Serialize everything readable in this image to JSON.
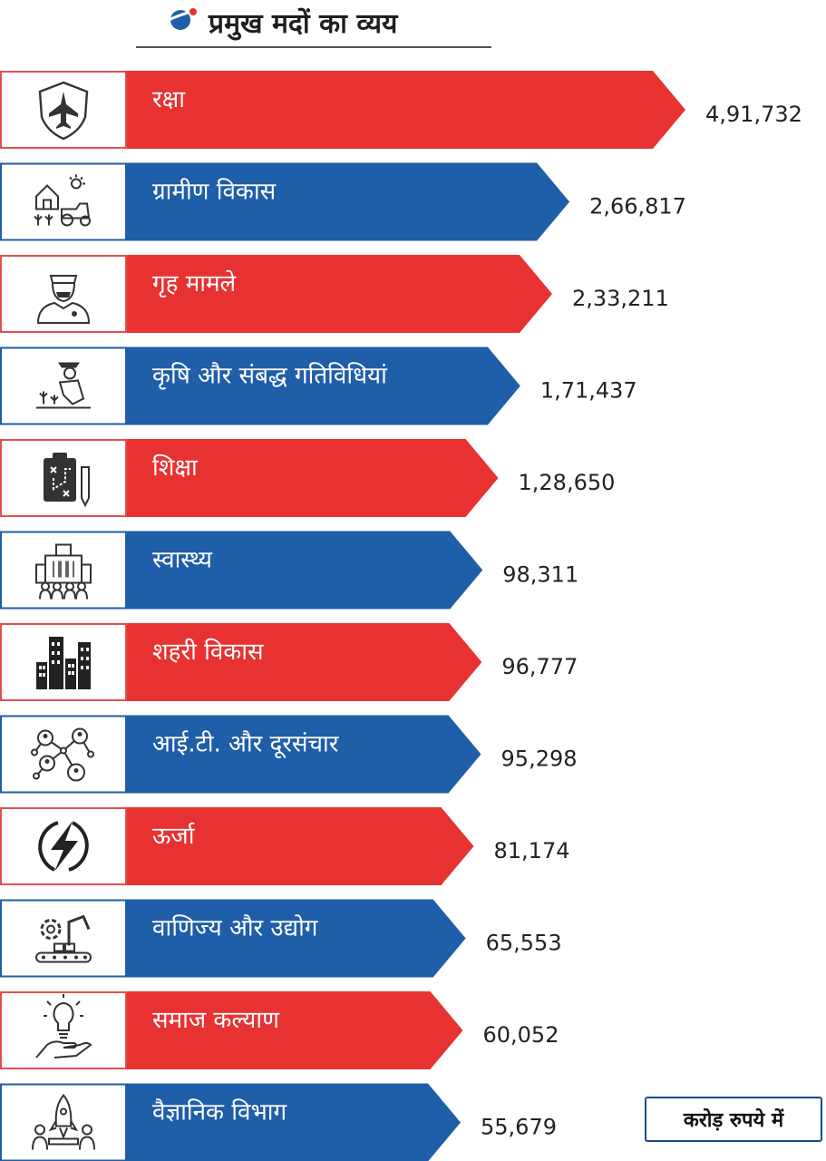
{
  "header": {
    "title": "प्रमुख मदों का व्यय"
  },
  "unit_label": "करोड़ रुपये में",
  "colors": {
    "red": "#e83232",
    "blue": "#1f5ea8",
    "red_border": "#e25050",
    "blue_border": "#1f5ea8"
  },
  "chart_data": {
    "type": "bar",
    "orientation": "horizontal",
    "title": "प्रमुख मदों का व्यय",
    "unit": "करोड़ रुपये में",
    "categories": [
      "रक्षा",
      "ग्रामीण विकास",
      "गृह मामले",
      "कृषि और संबद्ध गतिविधियां",
      "शिक्षा",
      "स्वास्थ्य",
      "शहरी विकास",
      "आई.टी. और दूरसंचार",
      "ऊर्जा",
      "वाणिज्य और उद्योग",
      "समाज कल्याण",
      "वैज्ञानिक विभाग"
    ],
    "values": [
      491732,
      266817,
      233211,
      171437,
      128650,
      98311,
      96777,
      95298,
      81174,
      65553,
      60052,
      55679
    ],
    "value_labels": [
      "4,91,732",
      "2,66,817",
      "2,33,211",
      "1,71,437",
      "1,28,650",
      "98,311",
      "96,777",
      "95,298",
      "81,174",
      "65,553",
      "60,052",
      "55,679"
    ],
    "icons": [
      "shield-jet-icon",
      "rural-tractor-icon",
      "police-officer-icon",
      "farmer-icon",
      "clipboard-plan-icon",
      "hospital-people-icon",
      "city-buildings-icon",
      "network-people-icon",
      "lightning-icon",
      "factory-robot-icon",
      "hand-bulb-icon",
      "rocket-launch-icon"
    ],
    "bar_colors": [
      "red",
      "blue",
      "red",
      "blue",
      "red",
      "blue",
      "red",
      "blue",
      "red",
      "blue",
      "red",
      "blue"
    ]
  }
}
